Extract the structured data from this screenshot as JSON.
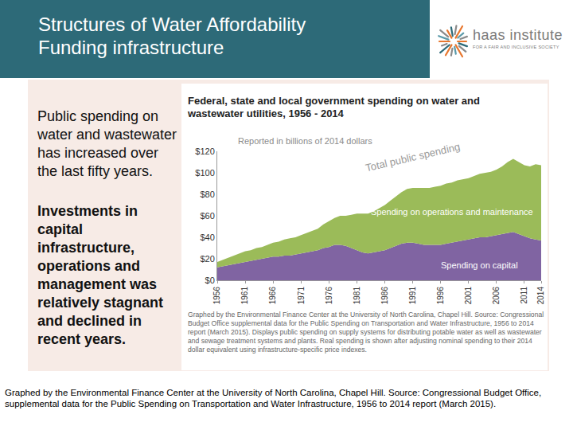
{
  "header": {
    "title": [
      "Structures of Water Affordability",
      "Funding infrastructure"
    ]
  },
  "logo": {
    "name": "haas institute",
    "tagline": "FOR A FAIR AND INCLUSIVE SOCIETY"
  },
  "sidebar": {
    "paragraphs": [
      {
        "text": "Public spending on water and wastewater has increased over the last fifty years.",
        "bold": false
      },
      {
        "text": "Investments in capital infrastructure, operations and management was relatively stagnant and declined in recent years.",
        "bold": true
      }
    ]
  },
  "footer": "Graphed by the Environmental Finance Center at the University of North Carolina, Chapel Hill. Source: Congressional Budget Office, supplemental data for the Public Spending on Transportation and Water Infrastructure, 1956 to 2014 report (March 2015).",
  "chart_data": {
    "type": "area",
    "stacked": true,
    "title": "Federal, state and local government spending on water and wastewater utilities, 1956 - 2014",
    "subtitle": "Reported in billions of 2014 dollars",
    "annotations": [
      "Total public spending"
    ],
    "note": "Graphed by the Environmental Finance Center at the University of North Carolina, Chapel Hill. Source: Congressional Budget Office supplemental data for the Public Spending on Transportation and Water Infrastructure, 1956 to 2014 report (March 2015). Displays public spending on supply systems for distributing potable water as well as wastewater and sewage treatment systems and plants. Real spending is shown after adjusting nominal spending to their 2014 dollar equivalent using infrastructure-specific price indexes.",
    "x": [
      1956,
      1957,
      1958,
      1959,
      1960,
      1961,
      1962,
      1963,
      1964,
      1965,
      1966,
      1967,
      1968,
      1969,
      1970,
      1971,
      1972,
      1973,
      1974,
      1975,
      1976,
      1977,
      1978,
      1979,
      1980,
      1981,
      1982,
      1983,
      1984,
      1985,
      1986,
      1987,
      1988,
      1989,
      1990,
      1991,
      1992,
      1993,
      1994,
      1995,
      1996,
      1997,
      1998,
      1999,
      2000,
      2001,
      2002,
      2003,
      2004,
      2005,
      2006,
      2007,
      2008,
      2009,
      2010,
      2011,
      2012,
      2013,
      2014
    ],
    "series": [
      {
        "name": "Spending on capital",
        "color": "#8064a2",
        "values": [
          12,
          13,
          14,
          15,
          16,
          17,
          18,
          19,
          20,
          21,
          22,
          22,
          23,
          23,
          24,
          25,
          26,
          27,
          28,
          30,
          31,
          33,
          33,
          32,
          30,
          28,
          26,
          25,
          26,
          27,
          28,
          30,
          32,
          34,
          35,
          35,
          34,
          33,
          33,
          33,
          33,
          34,
          35,
          36,
          37,
          38,
          39,
          40,
          40,
          41,
          42,
          43,
          44,
          45,
          43,
          41,
          39,
          38,
          37
        ]
      },
      {
        "name": "Spending on operations and maintenance",
        "color": "#9bbb59",
        "values": [
          5,
          6,
          7,
          8,
          9,
          10,
          10,
          11,
          11,
          12,
          13,
          14,
          15,
          16,
          16,
          17,
          18,
          19,
          20,
          22,
          24,
          25,
          27,
          28,
          31,
          34,
          36,
          37,
          38,
          40,
          42,
          44,
          46,
          48,
          50,
          51,
          52,
          53,
          53,
          54,
          55,
          56,
          56,
          57,
          57,
          57,
          58,
          59,
          60,
          60,
          61,
          63,
          66,
          68,
          67,
          66,
          67,
          70,
          70
        ]
      }
    ],
    "xlim": [
      1956,
      2014
    ],
    "xticks": [
      1956,
      1961,
      1966,
      1971,
      1976,
      1981,
      1986,
      1991,
      1996,
      2001,
      2006,
      2011,
      2014
    ],
    "ylim": [
      0,
      120
    ],
    "yticks": [
      {
        "value": 0,
        "label": "$0"
      },
      {
        "value": 20,
        "label": "$20"
      },
      {
        "value": 40,
        "label": "$40"
      },
      {
        "value": 60,
        "label": "$60"
      },
      {
        "value": 80,
        "label": "$80"
      },
      {
        "value": 100,
        "label": "$100"
      },
      {
        "value": 120,
        "label": "$120"
      }
    ],
    "grid": false,
    "data_labels": false
  }
}
